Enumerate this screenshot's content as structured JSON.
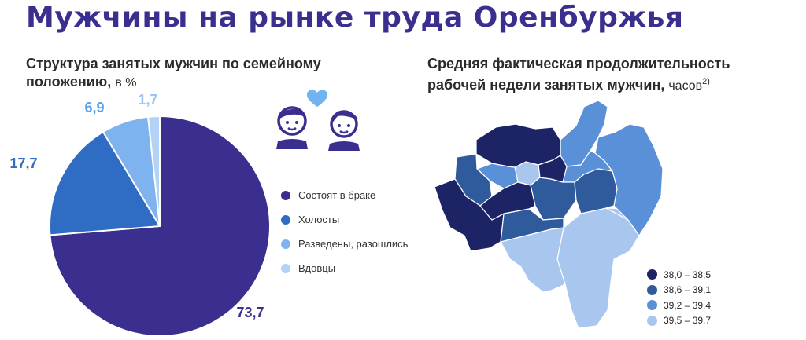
{
  "title": "Мужчины на рынке труда Оренбуржья",
  "pie_title": {
    "main": "Структура занятых мужчин по семейному положению,",
    "unit": "в %"
  },
  "map_title": {
    "main": "Средняя фактическая продолжительность рабочей недели занятых мужчин,",
    "unit": "часов",
    "footnote": "2)"
  },
  "chart_data": [
    {
      "type": "pie",
      "unit": "%",
      "categories": [
        "Состоят в браке",
        "Холосты",
        "Разведены, разошлись",
        "Вдовцы"
      ],
      "values": [
        73.7,
        17.7,
        6.9,
        1.7
      ],
      "value_labels": [
        "73,7",
        "17,7",
        "6,9",
        "1,7"
      ],
      "colors": [
        "#3a2f8f",
        "#2f6cc4",
        "#7fb3ef",
        "#b3d2f5"
      ],
      "legend_position": "right"
    },
    {
      "type": "choropleth",
      "legend_position": "bottom-right",
      "bins": [
        {
          "label": "38,0 – 38,5",
          "color": "#1c2466"
        },
        {
          "label": "38,6 – 39,1",
          "color": "#2f5a9c"
        },
        {
          "label": "39,2 – 39,4",
          "color": "#5a90d8"
        },
        {
          "label": "39,5 – 39,7",
          "color": "#a9c7ee"
        }
      ]
    }
  ],
  "decoration": {
    "couple_icon": "couple-with-heart-icon",
    "icon_color": "#3a2f8f",
    "heart_color": "#6fb4ee"
  }
}
